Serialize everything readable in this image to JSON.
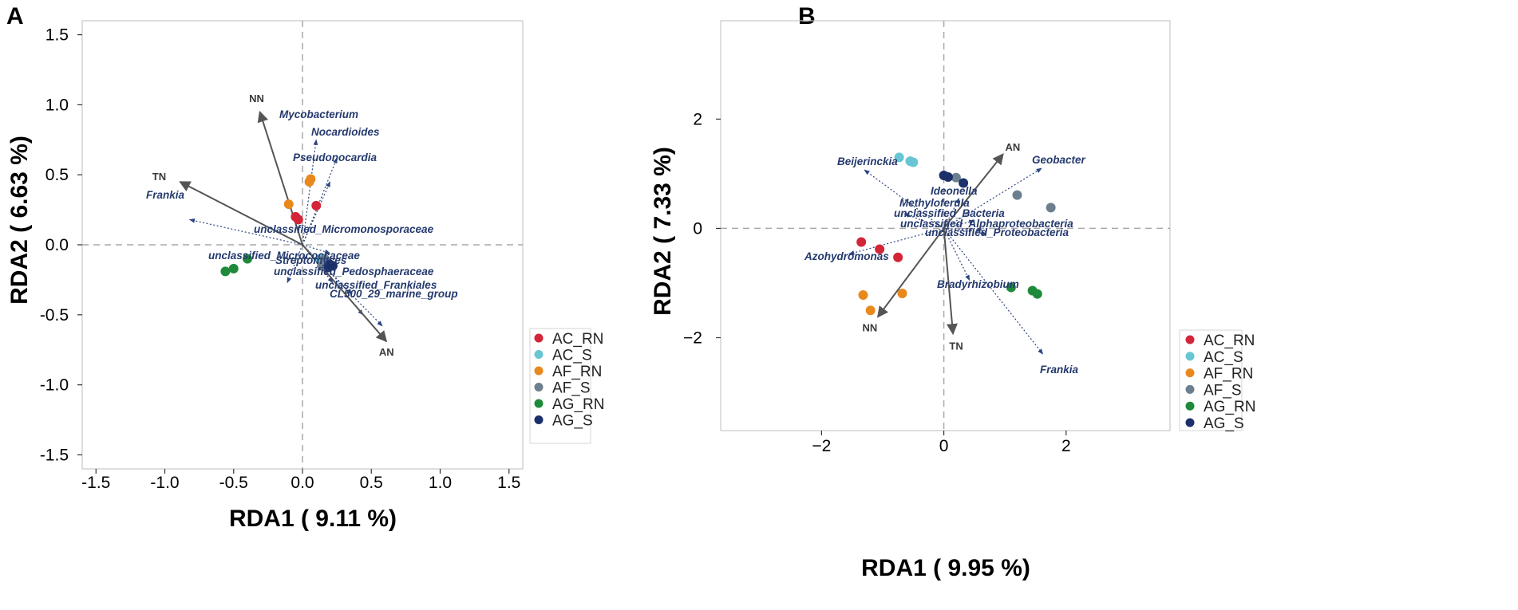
{
  "chart_data": [
    {
      "panel": "A",
      "type": "scatter",
      "subtype": "RDA biplot",
      "xlabel": "RDA1 ( 9.11 %)",
      "ylabel": "RDA2 ( 6.63 %)",
      "xlim": [
        -1.6,
        1.6
      ],
      "ylim": [
        -1.6,
        1.6
      ],
      "xticks": [
        -1.5,
        -1.0,
        -0.5,
        0.0,
        0.5,
        1.0,
        1.5
      ],
      "yticks": [
        -1.5,
        -1.0,
        -0.5,
        0.0,
        0.5,
        1.0,
        1.5
      ],
      "xtick_labels": [
        "-1.5",
        "-1.0",
        "-0.5",
        "0.0",
        "0.5",
        "1.0",
        "1.5"
      ],
      "ytick_labels": [
        "-1.5",
        "-1.0",
        "-0.5",
        "0.0",
        "0.5",
        "1.0",
        "1.5"
      ],
      "env_arrows": [
        {
          "name": "NN",
          "x": -0.31,
          "y": 0.95
        },
        {
          "name": "TN",
          "x": -0.89,
          "y": 0.45
        },
        {
          "name": "AN",
          "x": 0.61,
          "y": -0.69
        }
      ],
      "taxon_arrows": [
        {
          "name": "Mycobacterium",
          "x": 0.1,
          "y": 0.75
        },
        {
          "name": "Nocardioides",
          "x": 0.25,
          "y": 0.62
        },
        {
          "name": "Pseudonocardia",
          "x": 0.2,
          "y": 0.45
        },
        {
          "name": "Frankia",
          "x": -0.82,
          "y": 0.18
        },
        {
          "name": "unclassified_Micromonosporaceae",
          "x": 0.2,
          "y": -0.06
        },
        {
          "name": "unclassified_Micrococcaceae",
          "x": -0.11,
          "y": -0.27
        },
        {
          "name": "Streptomyces",
          "x": 0.22,
          "y": -0.27
        },
        {
          "name": "unclassified_Pedosphaeraceae",
          "x": 0.36,
          "y": -0.35
        },
        {
          "name": "unclassified_Frankiales",
          "x": 0.44,
          "y": -0.5
        },
        {
          "name": "CL500_29_marine_group",
          "x": 0.58,
          "y": -0.58
        }
      ],
      "series": [
        {
          "name": "AC_RN",
          "color": "#d42438",
          "points": [
            [
              -0.05,
              0.2
            ],
            [
              -0.03,
              0.18
            ],
            [
              0.1,
              0.28
            ]
          ]
        },
        {
          "name": "AC_S",
          "color": "#68c6d4",
          "points": [
            [
              0.13,
              -0.1
            ],
            [
              0.15,
              -0.12
            ],
            [
              0.17,
              -0.14
            ]
          ]
        },
        {
          "name": "AF_RN",
          "color": "#e8891c",
          "points": [
            [
              -0.1,
              0.29
            ],
            [
              0.05,
              0.45
            ],
            [
              0.06,
              0.47
            ]
          ]
        },
        {
          "name": "AF_S",
          "color": "#6b7f8f",
          "points": [
            [
              0.16,
              -0.1
            ],
            [
              0.18,
              -0.12
            ],
            [
              0.14,
              -0.15
            ]
          ]
        },
        {
          "name": "AG_RN",
          "color": "#1f8a3a",
          "points": [
            [
              -0.4,
              -0.1
            ],
            [
              -0.5,
              -0.17
            ],
            [
              -0.56,
              -0.19
            ]
          ]
        },
        {
          "name": "AG_S",
          "color": "#1b2f6b",
          "points": [
            [
              0.2,
              -0.14
            ],
            [
              0.22,
              -0.15
            ],
            [
              0.19,
              -0.16
            ]
          ]
        }
      ]
    },
    {
      "panel": "B",
      "type": "scatter",
      "subtype": "RDA biplot",
      "xlabel": "RDA1 ( 9.95 %)",
      "ylabel": "RDA2 ( 7.33 %)",
      "xlim": [
        -3.65,
        3.7
      ],
      "ylim": [
        -3.7,
        3.8
      ],
      "xticks": [
        -2,
        0,
        2
      ],
      "yticks": [
        -2,
        0,
        2
      ],
      "xtick_labels": [
        "−2",
        "0",
        "2"
      ],
      "ytick_labels": [
        "−2",
        "0",
        "2"
      ],
      "env_arrows": [
        {
          "name": "AN",
          "x": 0.97,
          "y": 1.36
        },
        {
          "name": "NN",
          "x": -1.08,
          "y": -1.62
        },
        {
          "name": "TN",
          "x": 0.15,
          "y": -1.93
        }
      ],
      "taxon_arrows": [
        {
          "name": "Beijerinckia",
          "x": -1.3,
          "y": 1.07
        },
        {
          "name": "Geobacter",
          "x": 1.6,
          "y": 1.1
        },
        {
          "name": "Ideonella",
          "x": 0.25,
          "y": 0.55
        },
        {
          "name": "Methyloferula",
          "x": -0.65,
          "y": 0.27
        },
        {
          "name": "unclassified_Bacteria",
          "x": 0.5,
          "y": 0.14
        },
        {
          "name": "unclassified_Alphaproteobacteria",
          "x": 0.63,
          "y": -0.03
        },
        {
          "name": "unclassified_Proteobacteria",
          "x": 0.7,
          "y": -0.1
        },
        {
          "name": "Azohydromonas",
          "x": -1.55,
          "y": -0.47
        },
        {
          "name": "Bradyrhizobium",
          "x": 0.42,
          "y": -0.95
        },
        {
          "name": "Frankia",
          "x": 1.62,
          "y": -2.3
        }
      ],
      "series": [
        {
          "name": "AC_RN",
          "color": "#d42438",
          "points": [
            [
              -1.35,
              -0.25
            ],
            [
              -1.05,
              -0.38
            ],
            [
              -0.75,
              -0.53
            ]
          ]
        },
        {
          "name": "AC_S",
          "color": "#68c6d4",
          "points": [
            [
              -0.73,
              1.3
            ],
            [
              -0.55,
              1.23
            ],
            [
              -0.5,
              1.21
            ]
          ]
        },
        {
          "name": "AF_RN",
          "color": "#e8891c",
          "points": [
            [
              -1.32,
              -1.22
            ],
            [
              -1.2,
              -1.5
            ],
            [
              -0.68,
              -1.19
            ]
          ]
        },
        {
          "name": "AF_S",
          "color": "#6b7f8f",
          "points": [
            [
              0.2,
              0.93
            ],
            [
              1.2,
              0.61
            ],
            [
              1.75,
              0.38
            ]
          ]
        },
        {
          "name": "AG_RN",
          "color": "#1f8a3a",
          "points": [
            [
              1.1,
              -1.08
            ],
            [
              1.45,
              -1.14
            ],
            [
              1.53,
              -1.2
            ]
          ]
        },
        {
          "name": "AG_S",
          "color": "#1b2f6b",
          "points": [
            [
              0.0,
              0.97
            ],
            [
              0.07,
              0.94
            ],
            [
              0.32,
              0.83
            ]
          ]
        }
      ]
    }
  ]
}
